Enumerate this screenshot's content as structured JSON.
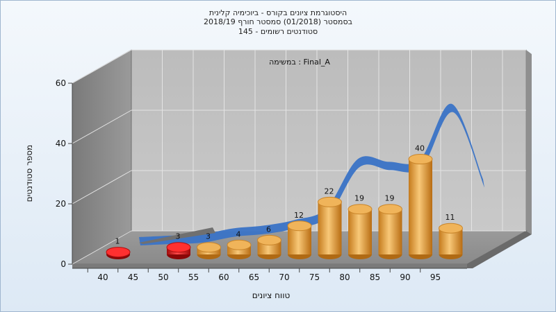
{
  "chart_data": {
    "type": "bar",
    "title_lines": [
      "היסטוגרמת ציונים בקורס - ביוכימיה קלינית",
      "בסמסטר  (01/2018)  סמסטר חורף 2018/19",
      "סטודנטים רשומים - 145"
    ],
    "annotation": "במשימה : Final_A",
    "xlabel": "טווח ציונים",
    "ylabel": "מספר סטודנטים",
    "ylim": [
      0,
      60
    ],
    "yticks": [
      0,
      20,
      40,
      60
    ],
    "xticks": [
      "40",
      "45",
      "50",
      "55",
      "60",
      "65",
      "70",
      "75",
      "80",
      "85",
      "90",
      "95"
    ],
    "categories": [
      "40",
      "50",
      "55",
      "60",
      "65",
      "70",
      "75",
      "80",
      "85",
      "90",
      "95"
    ],
    "values": [
      1,
      3,
      3,
      4,
      6,
      12,
      22,
      19,
      19,
      40,
      11
    ],
    "value_labels": [
      "1",
      "3",
      "3",
      "4",
      "6",
      "12",
      "22",
      "19",
      "19",
      "40",
      "11"
    ],
    "bar_colors": [
      "#e02020",
      "#e02020",
      "#e8a040",
      "#e8a040",
      "#e8a040",
      "#e8a040",
      "#e8a040",
      "#e8a040",
      "#e8a040",
      "#e8a040",
      "#e8a040"
    ],
    "trend_values": [
      0,
      0.5,
      1,
      3,
      4,
      6,
      10,
      27,
      26,
      27,
      46,
      20
    ],
    "trend_color": "#3a73c6",
    "grid": true,
    "view": "3d"
  }
}
